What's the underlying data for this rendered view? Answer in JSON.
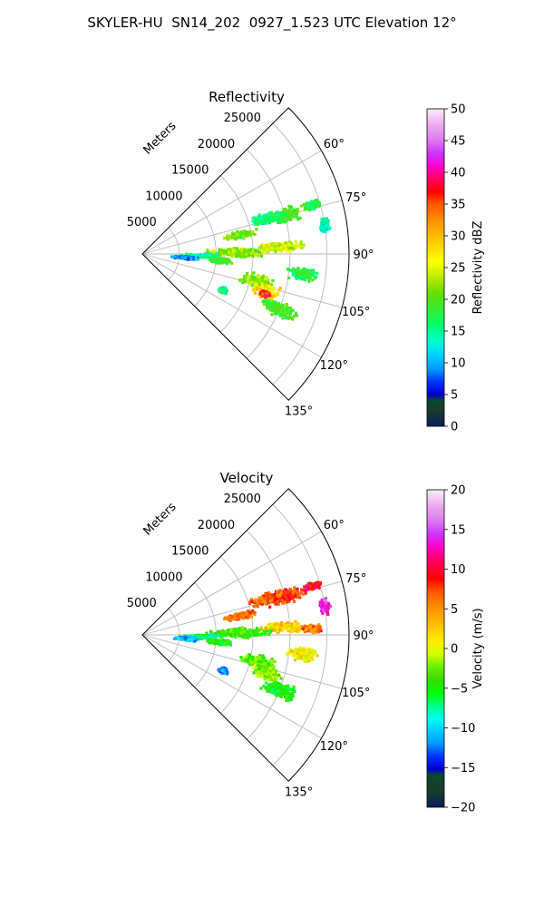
{
  "figure_title": "SKYLER-HU  SN14_202  0927_1.523 UTC Elevation 12°",
  "chart_data": [
    {
      "type": "polar_sector_heatmap",
      "title": "Reflectivity",
      "range_axis_label": "Meters",
      "range_ticks": [
        5000,
        10000,
        15000,
        20000,
        25000
      ],
      "range_tick_labels": [
        "5000",
        "10000",
        "15000",
        "20000",
        "25000"
      ],
      "azimuth_ticks_deg": [
        60,
        75,
        90,
        105,
        120,
        135
      ],
      "azimuth_tick_labels": [
        "60°",
        "75°",
        "90°",
        "105°",
        "120°",
        "135°"
      ],
      "azimuth_range_deg": [
        45,
        135
      ],
      "grid": true,
      "colorbar": {
        "label": "Reflectivity dBZ",
        "range": [
          0,
          50
        ],
        "ticks": [
          0,
          5,
          10,
          15,
          20,
          25,
          30,
          35,
          40,
          45,
          50
        ],
        "tick_labels": [
          "0",
          "5",
          "10",
          "15",
          "20",
          "25",
          "30",
          "35",
          "40",
          "45",
          "50"
        ],
        "stops": [
          [
            0,
            "#0a1f5c"
          ],
          [
            0.05,
            "#1a3a2a"
          ],
          [
            0.08,
            "#0b4a2e"
          ],
          [
            0.1,
            "#0000cc"
          ],
          [
            0.14,
            "#0033ff"
          ],
          [
            0.18,
            "#0099ff"
          ],
          [
            0.22,
            "#00ccff"
          ],
          [
            0.27,
            "#00ffcc"
          ],
          [
            0.32,
            "#00ff66"
          ],
          [
            0.37,
            "#33ee33"
          ],
          [
            0.42,
            "#66dd00"
          ],
          [
            0.48,
            "#ccee00"
          ],
          [
            0.52,
            "#ffff00"
          ],
          [
            0.58,
            "#ffcc00"
          ],
          [
            0.64,
            "#ff9900"
          ],
          [
            0.7,
            "#ff5500"
          ],
          [
            0.74,
            "#ff0000"
          ],
          [
            0.78,
            "#ff0066"
          ],
          [
            0.82,
            "#ff00cc"
          ],
          [
            0.86,
            "#cc33ff"
          ],
          [
            0.9,
            "#dd77ee"
          ],
          [
            0.95,
            "#eeaaee"
          ],
          [
            1.0,
            "#ffeeff"
          ]
        ]
      },
      "echoes": [
        {
          "az": 75,
          "r": 20000,
          "ra": 3000,
          "raz": 3.5,
          "value": 19
        },
        {
          "az": 74,
          "r": 17500,
          "ra": 2600,
          "raz": 3,
          "value": 16
        },
        {
          "az": 79,
          "r": 13500,
          "ra": 2600,
          "raz": 2.5,
          "value": 21
        },
        {
          "az": 74,
          "r": 24000,
          "ra": 1500,
          "raz": 1.5,
          "value": 17
        },
        {
          "az": 87,
          "r": 19000,
          "ra": 4000,
          "raz": 2.5,
          "value": 24
        },
        {
          "az": 89,
          "r": 13000,
          "ra": 5000,
          "raz": 3.5,
          "value": 22
        },
        {
          "az": 92,
          "r": 8000,
          "ra": 3000,
          "raz": 2.5,
          "value": 15
        },
        {
          "az": 95,
          "r": 6000,
          "ra": 2200,
          "raz": 2.5,
          "value": 9
        },
        {
          "az": 95,
          "r": 10500,
          "ra": 2000,
          "raz": 2.5,
          "value": 19
        },
        {
          "az": 103,
          "r": 16000,
          "ra": 2800,
          "raz": 4,
          "value": 22
        },
        {
          "az": 107,
          "r": 17500,
          "ra": 2500,
          "raz": 4,
          "value": 28
        },
        {
          "az": 108,
          "r": 17500,
          "ra": 900,
          "raz": 1.5,
          "value": 36
        },
        {
          "az": 112,
          "r": 20000,
          "ra": 3000,
          "raz": 3.5,
          "value": 19
        },
        {
          "az": 97,
          "r": 22000,
          "ra": 2500,
          "raz": 3,
          "value": 17
        },
        {
          "az": 114,
          "r": 12000,
          "ra": 800,
          "raz": 2.5,
          "value": 16
        },
        {
          "az": 81,
          "r": 25000,
          "ra": 800,
          "raz": 3,
          "value": 14
        }
      ]
    },
    {
      "type": "polar_sector_heatmap",
      "title": "Velocity",
      "range_axis_label": "Meters",
      "range_ticks": [
        5000,
        10000,
        15000,
        20000,
        25000
      ],
      "range_tick_labels": [
        "5000",
        "10000",
        "15000",
        "20000",
        "25000"
      ],
      "azimuth_ticks_deg": [
        60,
        75,
        90,
        105,
        120,
        135
      ],
      "azimuth_tick_labels": [
        "60°",
        "75°",
        "90°",
        "105°",
        "120°",
        "135°"
      ],
      "azimuth_range_deg": [
        45,
        135
      ],
      "grid": true,
      "colorbar": {
        "label": "Velocity (m/s)",
        "range": [
          -20,
          20
        ],
        "ticks": [
          -20,
          -15,
          -10,
          -5,
          0,
          5,
          10,
          15,
          20
        ],
        "tick_labels": [
          "−20",
          "−15",
          "−10",
          "−5",
          "0",
          "5",
          "10",
          "15",
          "20"
        ],
        "stops": [
          [
            0,
            "#0a1f5c"
          ],
          [
            0.05,
            "#1a3a2a"
          ],
          [
            0.1,
            "#0b4a2e"
          ],
          [
            0.12,
            "#0000cc"
          ],
          [
            0.16,
            "#0033ff"
          ],
          [
            0.2,
            "#0099ff"
          ],
          [
            0.24,
            "#00ccff"
          ],
          [
            0.28,
            "#00ffee"
          ],
          [
            0.32,
            "#00ff88"
          ],
          [
            0.36,
            "#00ff00"
          ],
          [
            0.4,
            "#33dd00"
          ],
          [
            0.44,
            "#66ee00"
          ],
          [
            0.48,
            "#ccff00"
          ],
          [
            0.52,
            "#ffee00"
          ],
          [
            0.56,
            "#ffcc00"
          ],
          [
            0.62,
            "#ff9900"
          ],
          [
            0.68,
            "#ff5500"
          ],
          [
            0.72,
            "#ff0000"
          ],
          [
            0.78,
            "#ff0066"
          ],
          [
            0.82,
            "#ff00cc"
          ],
          [
            0.86,
            "#cc33ff"
          ],
          [
            0.9,
            "#dd77ee"
          ],
          [
            0.95,
            "#eeaaee"
          ],
          [
            1.0,
            "#ffeeff"
          ]
        ]
      },
      "echoes": [
        {
          "az": 75,
          "r": 20000,
          "ra": 3000,
          "raz": 3.5,
          "value": 8
        },
        {
          "az": 74,
          "r": 17500,
          "ra": 2600,
          "raz": 3,
          "value": 7
        },
        {
          "az": 79,
          "r": 13500,
          "ra": 2600,
          "raz": 2.5,
          "value": 6
        },
        {
          "az": 74,
          "r": 24000,
          "ra": 1500,
          "raz": 1.5,
          "value": 10
        },
        {
          "az": 87,
          "r": 19000,
          "ra": 4000,
          "raz": 2.5,
          "value": 2
        },
        {
          "az": 88,
          "r": 23000,
          "ra": 1800,
          "raz": 2,
          "value": 6
        },
        {
          "az": 89,
          "r": 13000,
          "ra": 5000,
          "raz": 3.5,
          "value": -4
        },
        {
          "az": 92,
          "r": 8000,
          "ra": 3000,
          "raz": 2.5,
          "value": -7
        },
        {
          "az": 95,
          "r": 6000,
          "ra": 2200,
          "raz": 2.5,
          "value": -11
        },
        {
          "az": 95,
          "r": 10500,
          "ra": 2000,
          "raz": 2.5,
          "value": -5
        },
        {
          "az": 103,
          "r": 16000,
          "ra": 2800,
          "raz": 4,
          "value": -3
        },
        {
          "az": 107,
          "r": 17500,
          "ra": 2500,
          "raz": 4,
          "value": -2
        },
        {
          "az": 112,
          "r": 20000,
          "ra": 3000,
          "raz": 3.5,
          "value": -5
        },
        {
          "az": 97,
          "r": 22000,
          "ra": 2500,
          "raz": 3,
          "value": 1
        },
        {
          "az": 114,
          "r": 12000,
          "ra": 800,
          "raz": 2.5,
          "value": -12
        },
        {
          "az": 81,
          "r": 25000,
          "ra": 800,
          "raz": 3,
          "value": 14
        }
      ]
    }
  ]
}
